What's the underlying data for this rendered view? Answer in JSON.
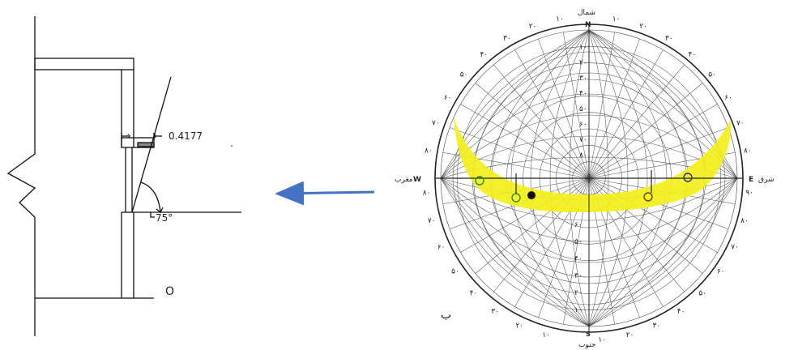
{
  "section": {
    "dimension_label": "0.4177",
    "angle_label": "75°",
    "circle_label": "O"
  },
  "sun_chart": {
    "north_letter": "N",
    "north_word": "شمال",
    "south_letter": "S",
    "south_word": "جنوب",
    "east_letter": "E",
    "east_word": "شرق",
    "west_letter": "W",
    "west_word": "مغرب",
    "corner_letter": "ب",
    "highlight_color": "#f4ef1a",
    "outer_scale_top_left": [
      "۱۰",
      "۲۰",
      "۳۰",
      "۴۰",
      "۵۰",
      "۶۰",
      "۷۰",
      "۸۰"
    ],
    "outer_scale_top_right": [
      "۱۰",
      "۲۰",
      "۳۰",
      "۴۰",
      "۵۰",
      "۶۰",
      "۷۰",
      "۸۰"
    ],
    "outer_scale_bottom_left": [
      "۸۰",
      "۷۰",
      "۶۰",
      "۵۰",
      "۴۰",
      "۳۰",
      "۲۰",
      "۱۰"
    ],
    "outer_scale_bottom_right": [
      "۹۰",
      "۸۰",
      "۷۰",
      "۶۰",
      "۵۰",
      "۴۰",
      "۳۰",
      "۲۰",
      "۱۰"
    ],
    "altitude_scale_north": [
      "۱۰",
      "۲۰",
      "۳۰",
      "۴۰",
      "۵۰",
      "۶۰",
      "۷۰",
      "۸۰"
    ],
    "altitude_scale_south": [
      "۶۰",
      "۵۰",
      "۴۰",
      "۳۰",
      "۲۰",
      "۱۰"
    ]
  },
  "arrow": {
    "color": "#4472c4"
  }
}
